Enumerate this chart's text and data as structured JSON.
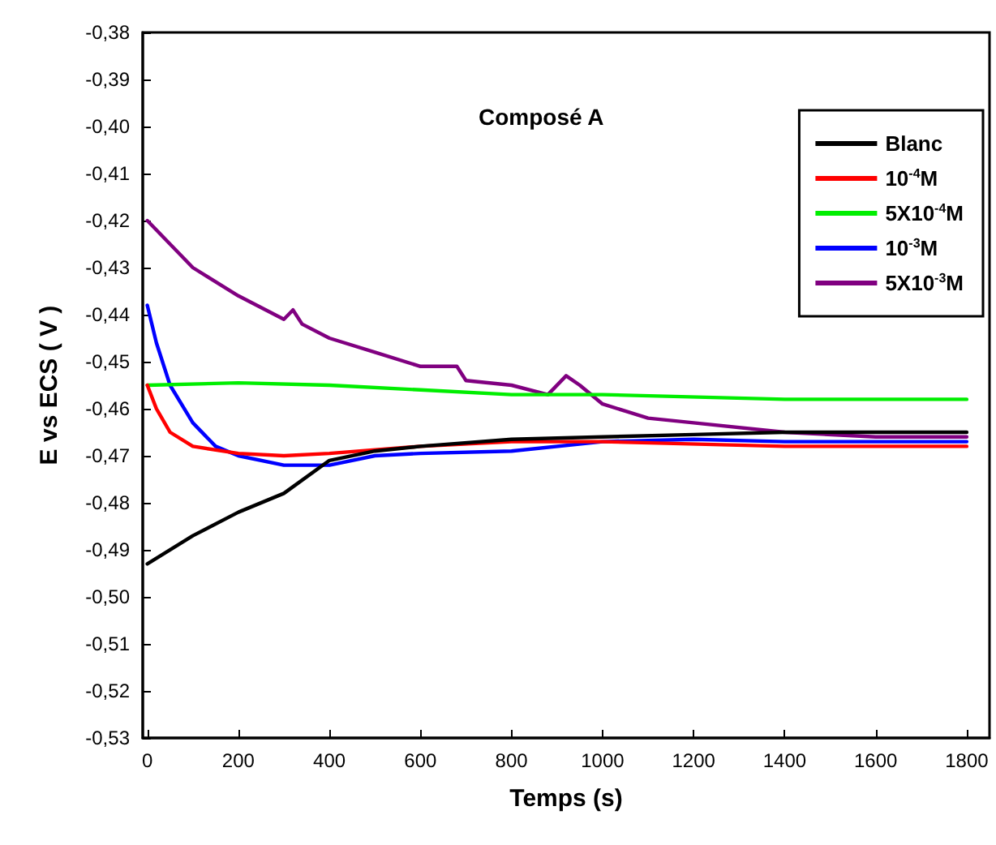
{
  "chart_data": {
    "type": "line",
    "title": "Composé A",
    "xlabel": "Temps (s)",
    "ylabel": "E vs ECS ( V )",
    "xlim": [
      -10,
      1850
    ],
    "xticks": [
      0,
      200,
      400,
      600,
      800,
      1000,
      1200,
      1400,
      1600,
      1800
    ],
    "ylim": [
      -0.53,
      -0.38
    ],
    "yticks": [
      {
        "value": -0.53,
        "label": "-0,53"
      },
      {
        "value": -0.52,
        "label": "-0,52"
      },
      {
        "value": -0.51,
        "label": "-0,51"
      },
      {
        "value": -0.5,
        "label": "-0,50"
      },
      {
        "value": -0.49,
        "label": "-0,49"
      },
      {
        "value": -0.48,
        "label": "-0,48"
      },
      {
        "value": -0.47,
        "label": "-0,47"
      },
      {
        "value": -0.46,
        "label": "-0,46"
      },
      {
        "value": -0.45,
        "label": "-0,45"
      },
      {
        "value": -0.44,
        "label": "-0,44"
      },
      {
        "value": -0.43,
        "label": "-0,43"
      },
      {
        "value": -0.42,
        "label": "-0,42"
      },
      {
        "value": -0.41,
        "label": "-0,41"
      },
      {
        "value": -0.4,
        "label": "-0,40"
      },
      {
        "value": -0.39,
        "label": "-0,39"
      },
      {
        "value": -0.38,
        "label": "-0,38"
      }
    ],
    "grid": false,
    "legend": "top right",
    "marker": "none",
    "line_style": "solid",
    "series": [
      {
        "name": "Blanc",
        "color": "#000000",
        "x": [
          0,
          100,
          200,
          300,
          400,
          500,
          600,
          800,
          1000,
          1200,
          1400,
          1600,
          1800
        ],
        "values": [
          -0.493,
          -0.487,
          -0.482,
          -0.478,
          -0.471,
          -0.469,
          -0.468,
          -0.4665,
          -0.466,
          -0.4655,
          -0.465,
          -0.465,
          -0.465
        ]
      },
      {
        "name": "10$^{-4}$M",
        "color": "#ff0000",
        "x": [
          0,
          20,
          50,
          100,
          200,
          300,
          400,
          600,
          800,
          1000,
          1400,
          1800
        ],
        "values": [
          -0.455,
          -0.46,
          -0.465,
          -0.468,
          -0.4695,
          -0.47,
          -0.4695,
          -0.468,
          -0.467,
          -0.467,
          -0.468,
          -0.468
        ]
      },
      {
        "name": "5X10$^{-4}$M",
        "color": "#00ee00",
        "x": [
          0,
          200,
          400,
          600,
          800,
          1000,
          1400,
          1800
        ],
        "values": [
          -0.455,
          -0.4545,
          -0.455,
          -0.456,
          -0.457,
          -0.457,
          -0.458,
          -0.458
        ]
      },
      {
        "name": "10$^{-3}$M",
        "color": "#0000ff",
        "x": [
          0,
          20,
          50,
          100,
          150,
          200,
          300,
          400,
          500,
          600,
          800,
          1000,
          1200,
          1400,
          1600,
          1800
        ],
        "values": [
          -0.438,
          -0.446,
          -0.455,
          -0.463,
          -0.468,
          -0.47,
          -0.472,
          -0.472,
          -0.47,
          -0.4695,
          -0.469,
          -0.467,
          -0.4665,
          -0.467,
          -0.467,
          -0.467
        ]
      },
      {
        "name": "5X10$^{-3}$M",
        "color": "#800080",
        "x": [
          0,
          50,
          100,
          200,
          300,
          320,
          340,
          400,
          500,
          600,
          680,
          700,
          800,
          880,
          920,
          950,
          1000,
          1100,
          1200,
          1400,
          1600,
          1700,
          1800
        ],
        "values": [
          -0.42,
          -0.425,
          -0.43,
          -0.436,
          -0.441,
          -0.439,
          -0.442,
          -0.445,
          -0.448,
          -0.451,
          -0.451,
          -0.454,
          -0.455,
          -0.457,
          -0.453,
          -0.455,
          -0.459,
          -0.462,
          -0.463,
          -0.465,
          -0.466,
          -0.466,
          -0.466
        ]
      }
    ]
  }
}
